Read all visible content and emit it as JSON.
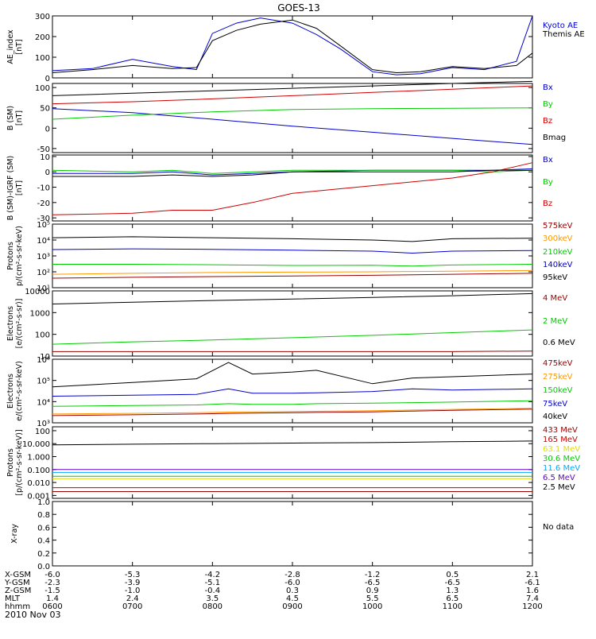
{
  "title": "GOES-13",
  "date_label": "2010 Nov 03",
  "footer": {
    "rows": [
      {
        "label": "X-GSM",
        "values": [
          "-6.0",
          "-5.3",
          "-4.2",
          "-2.8",
          "-1.2",
          "0.5",
          "2.1"
        ]
      },
      {
        "label": "Y-GSM",
        "values": [
          "-2.3",
          "-3.9",
          "-5.1",
          "-6.0",
          "-6.5",
          "-6.5",
          "-6.1"
        ]
      },
      {
        "label": "Z-GSM",
        "values": [
          "-1.5",
          "-1.0",
          "-0.4",
          "0.3",
          "0.9",
          "1.3",
          "1.6"
        ]
      },
      {
        "label": "MLT",
        "values": [
          "1.4",
          "2.4",
          "3.5",
          "4.5",
          "5.5",
          "6.5",
          "7.4"
        ]
      },
      {
        "label": "hhmm",
        "values": [
          "0600",
          "0700",
          "0800",
          "0900",
          "1000",
          "1100",
          "1200"
        ]
      }
    ]
  },
  "colors": {
    "black": "#000000",
    "blue": "#0000cc",
    "red": "#cc0000",
    "green": "#00cc00",
    "darkred": "#990000",
    "orange": "#ff9900",
    "cyan": "#00aaff",
    "purple": "#6600cc",
    "yellow": "#dddd00"
  },
  "chart_data": [
    {
      "type": "line",
      "ylabel": [
        "AE_index",
        "[nT]"
      ],
      "ylim": [
        0,
        300
      ],
      "yscale": "linear",
      "yticks": [
        {
          "v": 0,
          "t": "0"
        },
        {
          "v": 100,
          "t": "100"
        },
        {
          "v": 200,
          "t": "200"
        },
        {
          "v": 300,
          "t": "300"
        }
      ],
      "x": [
        6.0,
        6.5,
        7.0,
        7.5,
        7.8,
        8.0,
        8.3,
        8.6,
        9.0,
        9.3,
        9.6,
        10.0,
        10.3,
        10.6,
        11.0,
        11.4,
        11.8,
        12.0
      ],
      "series": [
        {
          "name": "Kyoto AE",
          "color": "blue",
          "values": [
            35,
            45,
            90,
            55,
            40,
            215,
            265,
            290,
            265,
            210,
            140,
            30,
            15,
            20,
            50,
            40,
            80,
            300
          ]
        },
        {
          "name": "Themis AE",
          "color": "black",
          "values": [
            25,
            40,
            60,
            45,
            50,
            180,
            230,
            260,
            280,
            240,
            155,
            40,
            25,
            30,
            55,
            45,
            60,
            120
          ]
        }
      ]
    },
    {
      "type": "line",
      "ylabel": [
        "B (SM)",
        "[nT]"
      ],
      "ylim": [
        -60,
        110
      ],
      "yscale": "linear",
      "yticks": [
        {
          "v": -50,
          "t": "-50"
        },
        {
          "v": 0,
          "t": "0"
        },
        {
          "v": 50,
          "t": "50"
        },
        {
          "v": 100,
          "t": "100"
        }
      ],
      "x": [
        6.0,
        7.0,
        8.0,
        9.0,
        10.0,
        11.0,
        12.0
      ],
      "series": [
        {
          "name": "Bx",
          "color": "blue",
          "values": [
            48,
            38,
            22,
            5,
            -10,
            -25,
            -40
          ]
        },
        {
          "name": "By",
          "color": "green",
          "values": [
            22,
            32,
            40,
            46,
            48,
            49,
            50
          ]
        },
        {
          "name": "Bz",
          "color": "red",
          "values": [
            60,
            65,
            72,
            80,
            88,
            96,
            104
          ]
        },
        {
          "name": "Bmag",
          "color": "black",
          "values": [
            80,
            86,
            92,
            98,
            104,
            110,
            115
          ]
        }
      ]
    },
    {
      "type": "line",
      "ylabel": [
        "B (SM)-IGRF (SM)",
        "[nT]"
      ],
      "ylim": [
        -32,
        11
      ],
      "yscale": "linear",
      "yticks": [
        {
          "v": -30,
          "t": "-30"
        },
        {
          "v": -20,
          "t": "-20"
        },
        {
          "v": -10,
          "t": "-10"
        },
        {
          "v": 0,
          "t": "0"
        },
        {
          "v": 10,
          "t": "10"
        }
      ],
      "x": [
        6.0,
        7.0,
        7.5,
        8.0,
        8.5,
        9.0,
        10.0,
        11.0,
        11.5,
        12.0
      ],
      "series": [
        {
          "name": "Bx",
          "color": "blue",
          "values": [
            -1,
            -1,
            0,
            -2,
            -1,
            0,
            1,
            1,
            1,
            2
          ]
        },
        {
          "name": "By",
          "color": "green",
          "values": [
            1,
            0,
            1,
            -1,
            0,
            1,
            1,
            1,
            0,
            1
          ]
        },
        {
          "name": "Bz",
          "color": "red",
          "values": [
            -28,
            -27,
            -25,
            -25,
            -20,
            -14,
            -9,
            -4,
            0,
            6
          ]
        },
        {
          "name": "",
          "color": "black",
          "values": [
            -3,
            -3,
            -2,
            -3,
            -2,
            0,
            0,
            0,
            1,
            1
          ]
        }
      ]
    },
    {
      "type": "line",
      "ylabel": [
        "Protons",
        "p/(cm²-s-sr-keV)"
      ],
      "ylim": [
        10,
        100000
      ],
      "yscale": "log",
      "yticks": [
        {
          "v": 10,
          "t": "10¹"
        },
        {
          "v": 100,
          "t": "10²"
        },
        {
          "v": 1000,
          "t": "10³"
        },
        {
          "v": 10000,
          "t": "10⁴"
        },
        {
          "v": 100000,
          "t": "10⁵"
        }
      ],
      "x": [
        6.0,
        7.0,
        8.0,
        9.0,
        10.0,
        10.5,
        11.0,
        12.0
      ],
      "series": [
        {
          "name": "575keV",
          "color": "darkred",
          "values": [
            40,
            45,
            50,
            55,
            60,
            65,
            70,
            80
          ]
        },
        {
          "name": "300keV",
          "color": "orange",
          "values": [
            70,
            80,
            90,
            95,
            100,
            105,
            110,
            120
          ]
        },
        {
          "name": "210keV",
          "color": "green",
          "values": [
            300,
            300,
            280,
            250,
            260,
            230,
            270,
            300
          ]
        },
        {
          "name": "140keV",
          "color": "blue",
          "values": [
            2500,
            2800,
            2600,
            2300,
            2000,
            1500,
            2000,
            2200
          ]
        },
        {
          "name": "95keV",
          "color": "black",
          "values": [
            14000,
            16000,
            14000,
            12000,
            10000,
            8000,
            12000,
            13000
          ]
        }
      ]
    },
    {
      "type": "line",
      "ylabel": [
        "Electrons",
        "[e/(cm²-s-sr)]"
      ],
      "ylim": [
        10,
        10000
      ],
      "yscale": "log",
      "yticks": [
        {
          "v": 10,
          "t": "10"
        },
        {
          "v": 100,
          "t": "100"
        },
        {
          "v": 1000,
          "t": "1000"
        },
        {
          "v": 10000,
          "t": "10000"
        }
      ],
      "x": [
        6.0,
        7.0,
        8.0,
        9.0,
        10.0,
        11.0,
        12.0
      ],
      "series": [
        {
          "name": "4 MeV",
          "color": "darkred",
          "values": [
            16,
            16,
            16,
            16,
            16,
            16,
            17
          ]
        },
        {
          "name": "2 MeV",
          "color": "green",
          "values": [
            35,
            45,
            55,
            70,
            90,
            120,
            160
          ]
        },
        {
          "name": "0.6 MeV",
          "color": "black",
          "values": [
            2500,
            3000,
            3600,
            4200,
            5000,
            6000,
            7500
          ]
        }
      ]
    },
    {
      "type": "line",
      "ylabel": [
        "Electrons",
        "e/(cm²-s-sr-keV)"
      ],
      "ylim": [
        1000,
        1000000
      ],
      "yscale": "log",
      "yticks": [
        {
          "v": 1000,
          "t": "10³"
        },
        {
          "v": 10000,
          "t": "10⁴"
        },
        {
          "v": 100000,
          "t": "10⁵"
        },
        {
          "v": 1000000,
          "t": "10⁶"
        }
      ],
      "x": [
        6.0,
        7.0,
        7.8,
        8.2,
        8.5,
        9.0,
        9.3,
        10.0,
        10.5,
        11.0,
        12.0
      ],
      "series": [
        {
          "name": "475keV",
          "color": "darkred",
          "values": [
            2200,
            2400,
            2600,
            2800,
            2900,
            3000,
            3100,
            3300,
            3600,
            3900,
            4400
          ]
        },
        {
          "name": "275keV",
          "color": "orange",
          "values": [
            2600,
            2800,
            3000,
            3200,
            3300,
            3400,
            3500,
            3700,
            4000,
            4300,
            4800
          ]
        },
        {
          "name": "150keV",
          "color": "green",
          "values": [
            6000,
            6500,
            7000,
            8000,
            7500,
            7500,
            8000,
            8500,
            9000,
            9500,
            11000
          ]
        },
        {
          "name": "75keV",
          "color": "blue",
          "values": [
            18000,
            20000,
            22000,
            40000,
            25000,
            25000,
            26000,
            30000,
            40000,
            35000,
            40000
          ]
        },
        {
          "name": "40keV",
          "color": "black",
          "values": [
            50000,
            80000,
            120000,
            700000,
            200000,
            250000,
            300000,
            70000,
            130000,
            150000,
            200000
          ]
        }
      ]
    },
    {
      "type": "line",
      "ylabel": [
        "Protons",
        "[p/(cm²-s-sr-keV)]"
      ],
      "ylim": [
        0.0006,
        200
      ],
      "yscale": "log",
      "yticks": [
        {
          "v": 0.001,
          "t": "0.001"
        },
        {
          "v": 0.01,
          "t": "0.010"
        },
        {
          "v": 0.1,
          "t": "0.100"
        },
        {
          "v": 1,
          "t": "1.000"
        },
        {
          "v": 10,
          "t": "10.000"
        },
        {
          "v": 100,
          "t": "100"
        }
      ],
      "x": [
        6.0,
        7.0,
        8.0,
        9.0,
        10.0,
        11.0,
        12.0
      ],
      "series": [
        {
          "name": "433 MeV",
          "color": "darkred",
          "values": [
            0.002,
            0.002,
            0.002,
            0.002,
            0.002,
            0.002,
            0.002
          ]
        },
        {
          "name": "165 MeV",
          "color": "red",
          "values": [
            0.004,
            0.004,
            0.004,
            0.004,
            0.004,
            0.004,
            0.004
          ]
        },
        {
          "name": "63.1 MeV",
          "color": "yellow",
          "values": [
            0.02,
            0.02,
            0.02,
            0.02,
            0.02,
            0.02,
            0.02
          ]
        },
        {
          "name": "30.6 MeV",
          "color": "green",
          "values": [
            0.03,
            0.03,
            0.03,
            0.03,
            0.03,
            0.03,
            0.03
          ]
        },
        {
          "name": "11.6 MeV",
          "color": "cyan",
          "values": [
            0.06,
            0.06,
            0.06,
            0.06,
            0.06,
            0.06,
            0.06
          ]
        },
        {
          "name": "6.5 MeV",
          "color": "purple",
          "values": [
            0.1,
            0.1,
            0.1,
            0.1,
            0.1,
            0.1,
            0.1
          ]
        },
        {
          "name": "2.5 MeV",
          "color": "black",
          "values": [
            8,
            9,
            10,
            11,
            12,
            14,
            16
          ]
        }
      ]
    },
    {
      "type": "line",
      "ylabel": [
        "X-ray"
      ],
      "ylim": [
        0,
        1
      ],
      "yscale": "linear",
      "yticks": [
        {
          "v": 0,
          "t": "0.0"
        },
        {
          "v": 0.2,
          "t": "0.2"
        },
        {
          "v": 0.4,
          "t": "0.4"
        },
        {
          "v": 0.6,
          "t": "0.6"
        },
        {
          "v": 0.8,
          "t": "0.8"
        },
        {
          "v": 1.0,
          "t": "1.0"
        }
      ],
      "x": [],
      "series": [],
      "annotation": "No data"
    }
  ]
}
